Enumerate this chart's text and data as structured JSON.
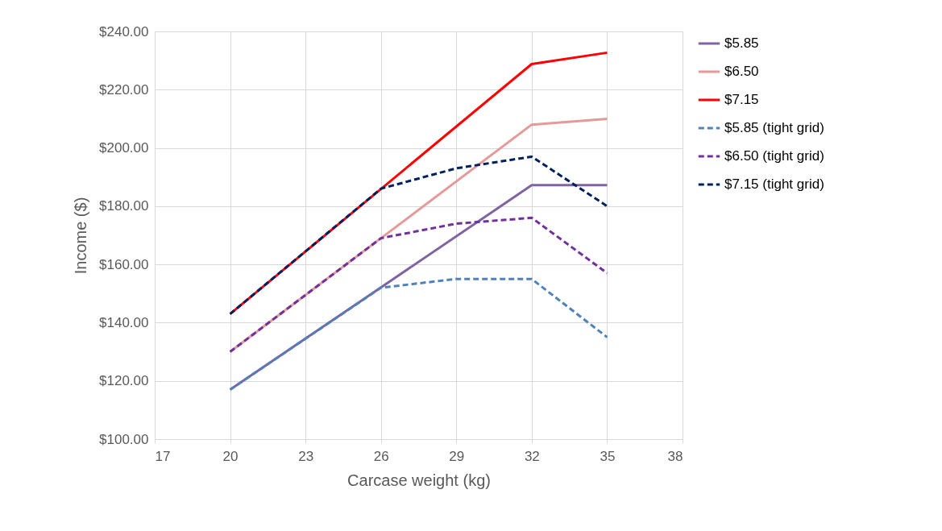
{
  "chart_data": {
    "type": "line",
    "xlabel": "Carcase weight (kg)",
    "ylabel": "Income ($)",
    "xlim": [
      17,
      38
    ],
    "xticks": [
      17,
      20,
      23,
      26,
      29,
      32,
      35,
      38
    ],
    "ylim": [
      100,
      240
    ],
    "yticks": [
      {
        "value": 100,
        "label": "$100.00"
      },
      {
        "value": 120,
        "label": "$120.00"
      },
      {
        "value": 140,
        "label": "$140.00"
      },
      {
        "value": 160,
        "label": "$160.00"
      },
      {
        "value": 180,
        "label": "$180.00"
      },
      {
        "value": 200,
        "label": "$200.00"
      },
      {
        "value": 220,
        "label": "$220.00"
      },
      {
        "value": 240,
        "label": "$240.00"
      }
    ],
    "grid": true,
    "legend": "right",
    "marker": "none",
    "series": [
      {
        "name": "$5.85",
        "color": "#8064a2",
        "line_style": "solid",
        "x": [
          20,
          26,
          32,
          35
        ],
        "values": [
          117,
          152.1,
          187.2,
          187.2
        ]
      },
      {
        "name": "$6.50",
        "color": "#e6999a",
        "line_style": "solid",
        "x": [
          20,
          26,
          32,
          35
        ],
        "values": [
          130,
          169,
          208,
          210
        ]
      },
      {
        "name": "$7.15",
        "color": "#ff0000",
        "line_style": "solid",
        "x": [
          20,
          26,
          32,
          35
        ],
        "values": [
          143,
          185.9,
          228.8,
          232.7
        ]
      },
      {
        "name": "$5.85 (tight grid)",
        "color": "#4f81bd",
        "line_style": "dashed",
        "x": [
          20,
          26,
          29,
          32,
          35
        ],
        "values": [
          117,
          152,
          155,
          155,
          135
        ]
      },
      {
        "name": "$6.50 (tight grid)",
        "color": "#7030a0",
        "line_style": "dashed",
        "x": [
          20,
          26,
          29,
          32,
          35
        ],
        "values": [
          130,
          169,
          174,
          176,
          157
        ]
      },
      {
        "name": "$7.15 (tight grid)",
        "color": "#002060",
        "line_style": "dashed",
        "x": [
          20,
          26,
          29,
          32,
          35
        ],
        "values": [
          143,
          186,
          193,
          197,
          180
        ]
      }
    ]
  }
}
